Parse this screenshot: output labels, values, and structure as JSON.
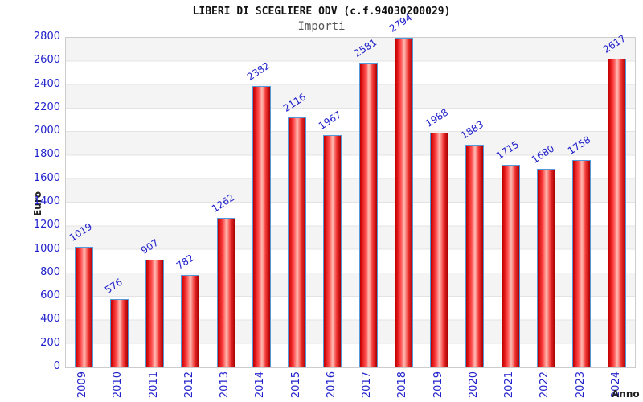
{
  "chart_data": {
    "type": "bar",
    "title": "LIBERI DI SCEGLIERE ODV (c.f.94030200029)",
    "subtitle": "Importi",
    "xlabel": "Anno",
    "ylabel": "Euro",
    "categories": [
      "2009",
      "2010",
      "2011",
      "2012",
      "2013",
      "2014",
      "2015",
      "2016",
      "2017",
      "2018",
      "2019",
      "2020",
      "2021",
      "2022",
      "2023",
      "2024"
    ],
    "values": [
      1019,
      576,
      907,
      782,
      1262,
      2382,
      2116,
      1967,
      2581,
      2794,
      1988,
      1883,
      1715,
      1680,
      1758,
      2617
    ],
    "value_labels": [
      "1019",
      "576",
      "907",
      "782",
      "1262",
      "2382",
      "2116",
      "1967",
      "2581",
      "2794",
      "1988",
      "1883",
      "1715",
      "1680",
      "1758",
      "2617"
    ],
    "ylim": [
      0,
      2800
    ],
    "y_ticks": [
      "0",
      "200",
      "400",
      "600",
      "800",
      "1000",
      "1200",
      "1400",
      "1600",
      "1800",
      "2000",
      "2200",
      "2400",
      "2600",
      "2800"
    ],
    "grid": true,
    "legend": null,
    "colors": {
      "bar_edge": "#bb0000",
      "bar_highlight": "#ffbdb4",
      "bar_border": "#5599dd",
      "tick_label": "#2222cc",
      "value_label": "#2222cc",
      "band_gray": "#f4f4f4",
      "gridline": "#e3e3e3",
      "plot_border": "#cccccc",
      "title": "#111111",
      "subtitle": "#555555",
      "axis_title": "#222222"
    }
  }
}
